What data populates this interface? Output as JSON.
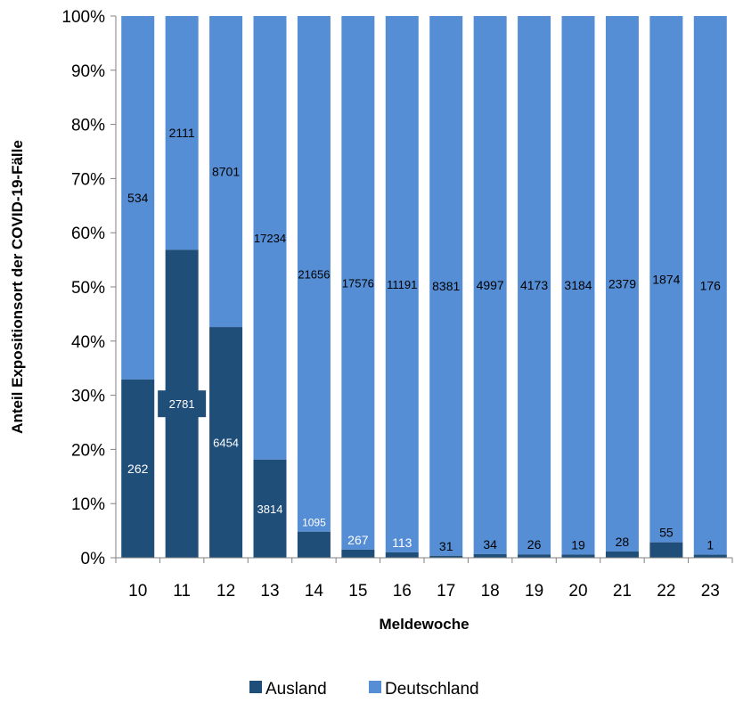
{
  "chart_data": {
    "type": "bar",
    "stacked": "percent",
    "xlabel": "Meldewoche",
    "ylabel": "Anteil Expositionsort der COVID-19-Fälle",
    "ylim": [
      0,
      100
    ],
    "yticks": [
      "0%",
      "10%",
      "20%",
      "30%",
      "40%",
      "50%",
      "60%",
      "70%",
      "80%",
      "90%",
      "100%"
    ],
    "categories": [
      "10",
      "11",
      "12",
      "13",
      "14",
      "15",
      "16",
      "17",
      "18",
      "19",
      "20",
      "21",
      "22",
      "23"
    ],
    "series": [
      {
        "name": "Ausland",
        "color": "#1f4e79",
        "values": [
          262,
          2781,
          6454,
          3814,
          1095,
          267,
          113,
          31,
          34,
          26,
          19,
          28,
          55,
          1
        ]
      },
      {
        "name": "Deutschland",
        "color": "#558ed5",
        "values": [
          534,
          2111,
          8701,
          17234,
          21656,
          17576,
          11191,
          8381,
          4997,
          4173,
          3184,
          2379,
          1874,
          176
        ]
      }
    ],
    "grid": false,
    "legend_position": "bottom"
  }
}
